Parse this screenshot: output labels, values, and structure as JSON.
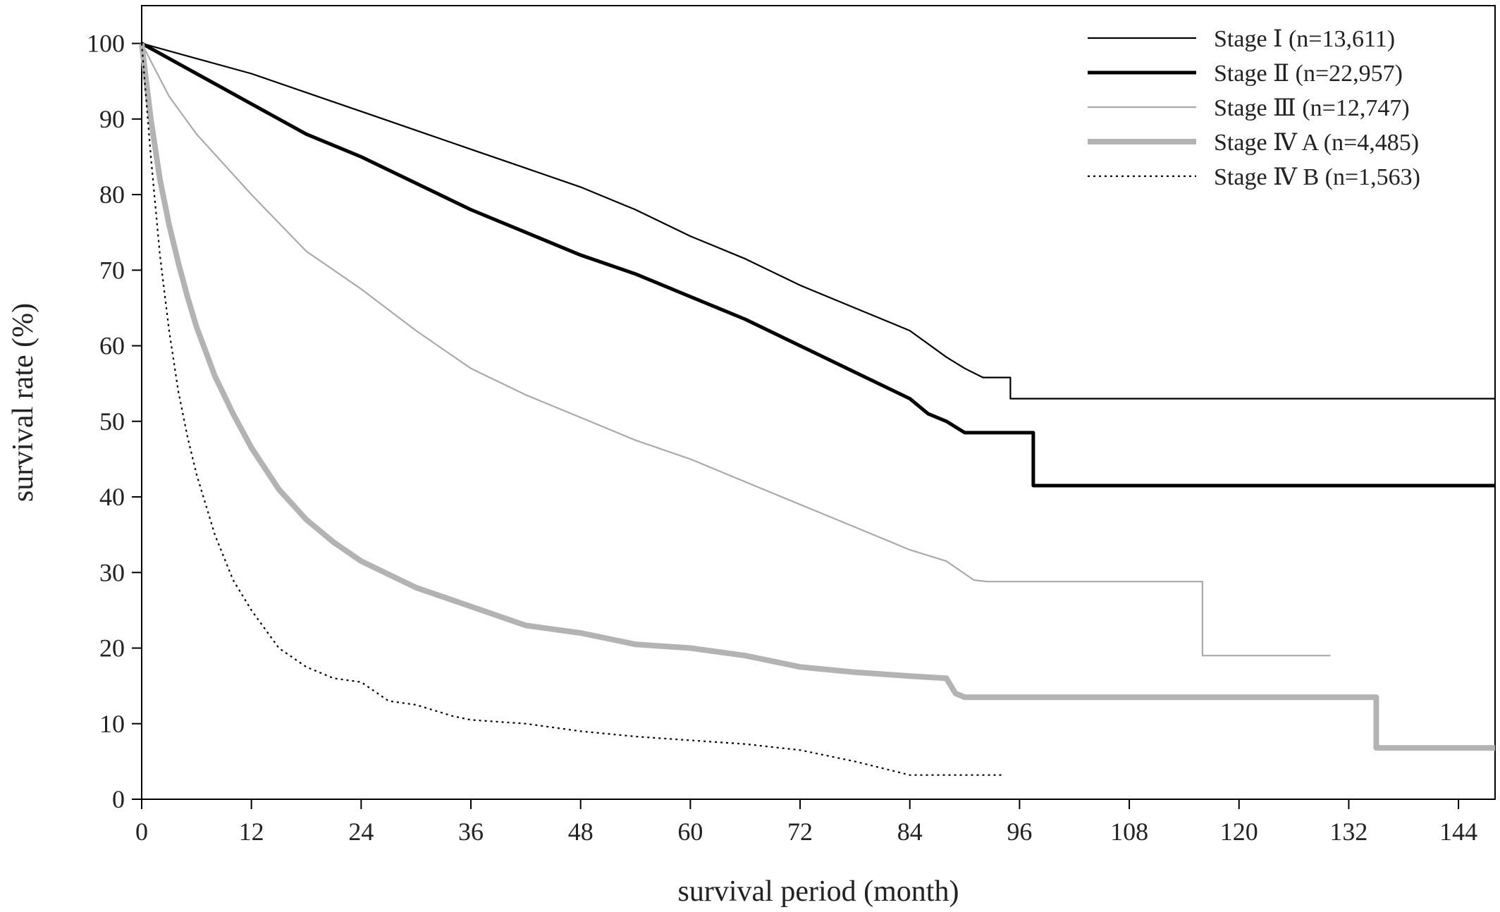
{
  "chart_data": {
    "type": "line",
    "title": "",
    "xlabel": "survival period (month)",
    "ylabel": "survival rate (%)",
    "xlim": [
      0,
      148
    ],
    "ylim": [
      0,
      105
    ],
    "xticks": [
      0,
      12,
      24,
      36,
      48,
      60,
      72,
      84,
      96,
      108,
      120,
      132,
      144
    ],
    "yticks": [
      0,
      10,
      20,
      30,
      40,
      50,
      60,
      70,
      80,
      90,
      100
    ],
    "grid": false,
    "legend_position": "top-right",
    "series": [
      {
        "name": "Stage Ⅰ (n=13,611)",
        "color": "#000000",
        "style": "thin-solid",
        "points": [
          [
            0,
            100
          ],
          [
            6,
            98
          ],
          [
            12,
            96
          ],
          [
            18,
            93.5
          ],
          [
            24,
            91
          ],
          [
            30,
            88.5
          ],
          [
            36,
            86
          ],
          [
            42,
            83.5
          ],
          [
            48,
            81
          ],
          [
            54,
            78
          ],
          [
            60,
            74.5
          ],
          [
            66,
            71.5
          ],
          [
            72,
            68
          ],
          [
            78,
            65
          ],
          [
            84,
            62
          ],
          [
            88,
            58.5
          ],
          [
            90,
            57
          ],
          [
            92,
            55.8
          ],
          [
            95,
            55.8
          ],
          [
            95,
            53
          ],
          [
            148,
            53
          ]
        ]
      },
      {
        "name": "Stage Ⅱ (n=22,957)",
        "color": "#000000",
        "style": "thick-solid",
        "points": [
          [
            0,
            100
          ],
          [
            6,
            96
          ],
          [
            12,
            92
          ],
          [
            18,
            88
          ],
          [
            24,
            85
          ],
          [
            30,
            81.5
          ],
          [
            36,
            78
          ],
          [
            42,
            75
          ],
          [
            48,
            72
          ],
          [
            54,
            69.5
          ],
          [
            60,
            66.5
          ],
          [
            66,
            63.5
          ],
          [
            72,
            60
          ],
          [
            78,
            56.5
          ],
          [
            84,
            53
          ],
          [
            86,
            51
          ],
          [
            88,
            50
          ],
          [
            90,
            48.5
          ],
          [
            97.5,
            48.5
          ],
          [
            97.5,
            41.5
          ],
          [
            148,
            41.5
          ]
        ]
      },
      {
        "name": "Stage Ⅲ (n=12,747)",
        "color": "#aaaaaa",
        "style": "thin-solid",
        "points": [
          [
            0,
            100
          ],
          [
            3,
            93
          ],
          [
            6,
            88
          ],
          [
            12,
            80
          ],
          [
            18,
            72.5
          ],
          [
            24,
            67.5
          ],
          [
            30,
            62
          ],
          [
            36,
            57
          ],
          [
            42,
            53.5
          ],
          [
            48,
            50.5
          ],
          [
            54,
            47.5
          ],
          [
            60,
            45
          ],
          [
            66,
            42
          ],
          [
            72,
            39
          ],
          [
            78,
            36
          ],
          [
            84,
            33
          ],
          [
            88,
            31.5
          ],
          [
            91,
            29
          ],
          [
            92.5,
            28.8
          ],
          [
            116,
            28.8
          ],
          [
            116,
            19
          ],
          [
            130,
            19
          ]
        ]
      },
      {
        "name": "Stage Ⅳ A (n=4,485)",
        "color": "#b3b3b3",
        "style": "very-thick-solid",
        "points": [
          [
            0,
            100
          ],
          [
            1,
            90
          ],
          [
            2,
            82
          ],
          [
            3,
            76
          ],
          [
            4,
            71
          ],
          [
            5,
            66.5
          ],
          [
            6,
            62.5
          ],
          [
            8,
            56
          ],
          [
            10,
            51
          ],
          [
            12,
            46.5
          ],
          [
            15,
            41
          ],
          [
            18,
            37
          ],
          [
            21,
            34
          ],
          [
            24,
            31.5
          ],
          [
            30,
            28
          ],
          [
            36,
            25.5
          ],
          [
            42,
            23
          ],
          [
            48,
            22
          ],
          [
            54,
            20.5
          ],
          [
            60,
            20
          ],
          [
            66,
            19
          ],
          [
            72,
            17.5
          ],
          [
            78,
            16.8
          ],
          [
            84,
            16.3
          ],
          [
            88,
            16
          ],
          [
            89,
            14
          ],
          [
            90,
            13.5
          ],
          [
            135,
            13.5
          ],
          [
            135,
            6.8
          ],
          [
            148,
            6.8
          ]
        ]
      },
      {
        "name": "Stage Ⅳ B (n=1,563)",
        "color": "#000000",
        "style": "dotted",
        "points": [
          [
            0,
            100
          ],
          [
            1,
            85
          ],
          [
            2,
            72
          ],
          [
            3,
            62
          ],
          [
            4,
            54
          ],
          [
            5,
            48
          ],
          [
            6,
            43
          ],
          [
            8,
            35
          ],
          [
            10,
            29
          ],
          [
            12,
            25
          ],
          [
            15,
            20
          ],
          [
            18,
            17.5
          ],
          [
            21,
            16
          ],
          [
            24,
            15.5
          ],
          [
            27,
            13
          ],
          [
            30,
            12.5
          ],
          [
            34,
            11
          ],
          [
            36,
            10.5
          ],
          [
            42,
            10
          ],
          [
            48,
            9
          ],
          [
            54,
            8.3
          ],
          [
            60,
            7.8
          ],
          [
            66,
            7.3
          ],
          [
            72,
            6.5
          ],
          [
            78,
            5
          ],
          [
            82,
            3.8
          ],
          [
            84,
            3.2
          ],
          [
            94,
            3.2
          ]
        ]
      }
    ]
  }
}
